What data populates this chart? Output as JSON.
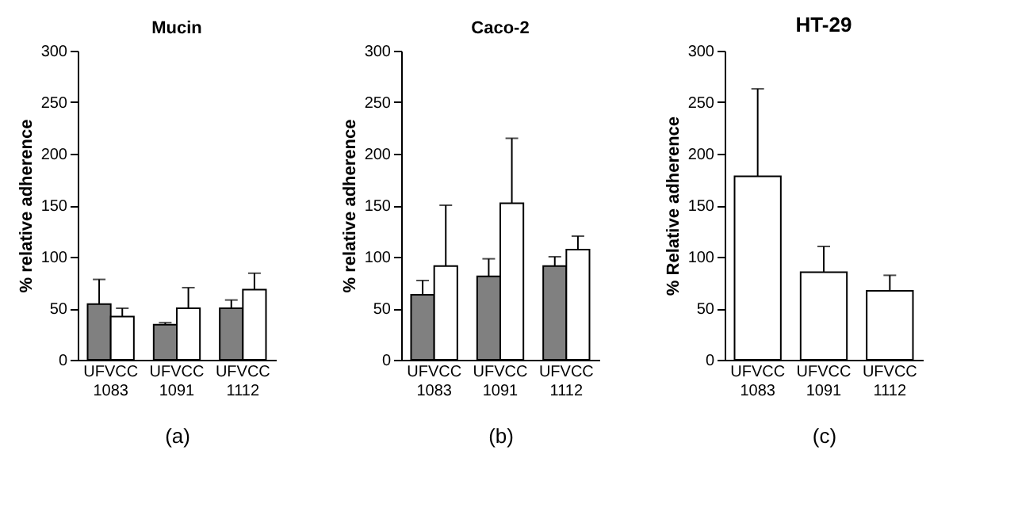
{
  "chart_data": [
    {
      "type": "bar",
      "title": "Mucin",
      "ylabel": "% relative adherence",
      "categories": [
        "UFVCC 1083",
        "UFVCC 1091",
        "UFVCC 1112"
      ],
      "ylim": [
        0,
        300
      ],
      "yticks": [
        0,
        50,
        100,
        150,
        200,
        250,
        300
      ],
      "grid": false,
      "legend": false,
      "annotations": [
        "(a)"
      ],
      "series": [
        {
          "color": "#808080",
          "values": [
            54,
            34,
            50
          ],
          "errors": [
            [
              54,
              78
            ],
            [
              34,
              36
            ],
            [
              50,
              58
            ]
          ]
        },
        {
          "color": "#ffffff",
          "values": [
            42,
            50,
            68
          ],
          "errors": [
            [
              42,
              50
            ],
            [
              50,
              70
            ],
            [
              68,
              84
            ]
          ]
        }
      ]
    },
    {
      "type": "bar",
      "title": "Caco-2",
      "ylabel": "% relative adherence",
      "categories": [
        "UFVCC 1083",
        "UFVCC 1091",
        "UFVCC 1112"
      ],
      "ylim": [
        0,
        300
      ],
      "yticks": [
        0,
        50,
        100,
        150,
        200,
        250,
        300
      ],
      "grid": false,
      "legend": false,
      "annotations": [
        "(b)"
      ],
      "series": [
        {
          "color": "#808080",
          "values": [
            63,
            81,
            91
          ],
          "errors": [
            [
              63,
              77
            ],
            [
              81,
              98
            ],
            [
              91,
              100
            ]
          ]
        },
        {
          "color": "#ffffff",
          "values": [
            91,
            152,
            107
          ],
          "errors": [
            [
              91,
              150
            ],
            [
              152,
              215
            ],
            [
              107,
              120
            ]
          ]
        }
      ]
    },
    {
      "type": "bar",
      "title": "HT-29",
      "ylabel": "% Relative adherence",
      "categories": [
        "UFVCC 1083",
        "UFVCC 1091",
        "UFVCC 1112"
      ],
      "ylim": [
        0,
        300
      ],
      "yticks": [
        0,
        50,
        100,
        150,
        200,
        250,
        300
      ],
      "grid": false,
      "legend": false,
      "annotations": [
        "(c)"
      ],
      "series": [
        {
          "color": "#ffffff",
          "values": [
            178,
            85,
            67
          ],
          "errors": [
            [
              178,
              263
            ],
            [
              85,
              110
            ],
            [
              67,
              82
            ]
          ]
        }
      ]
    }
  ]
}
